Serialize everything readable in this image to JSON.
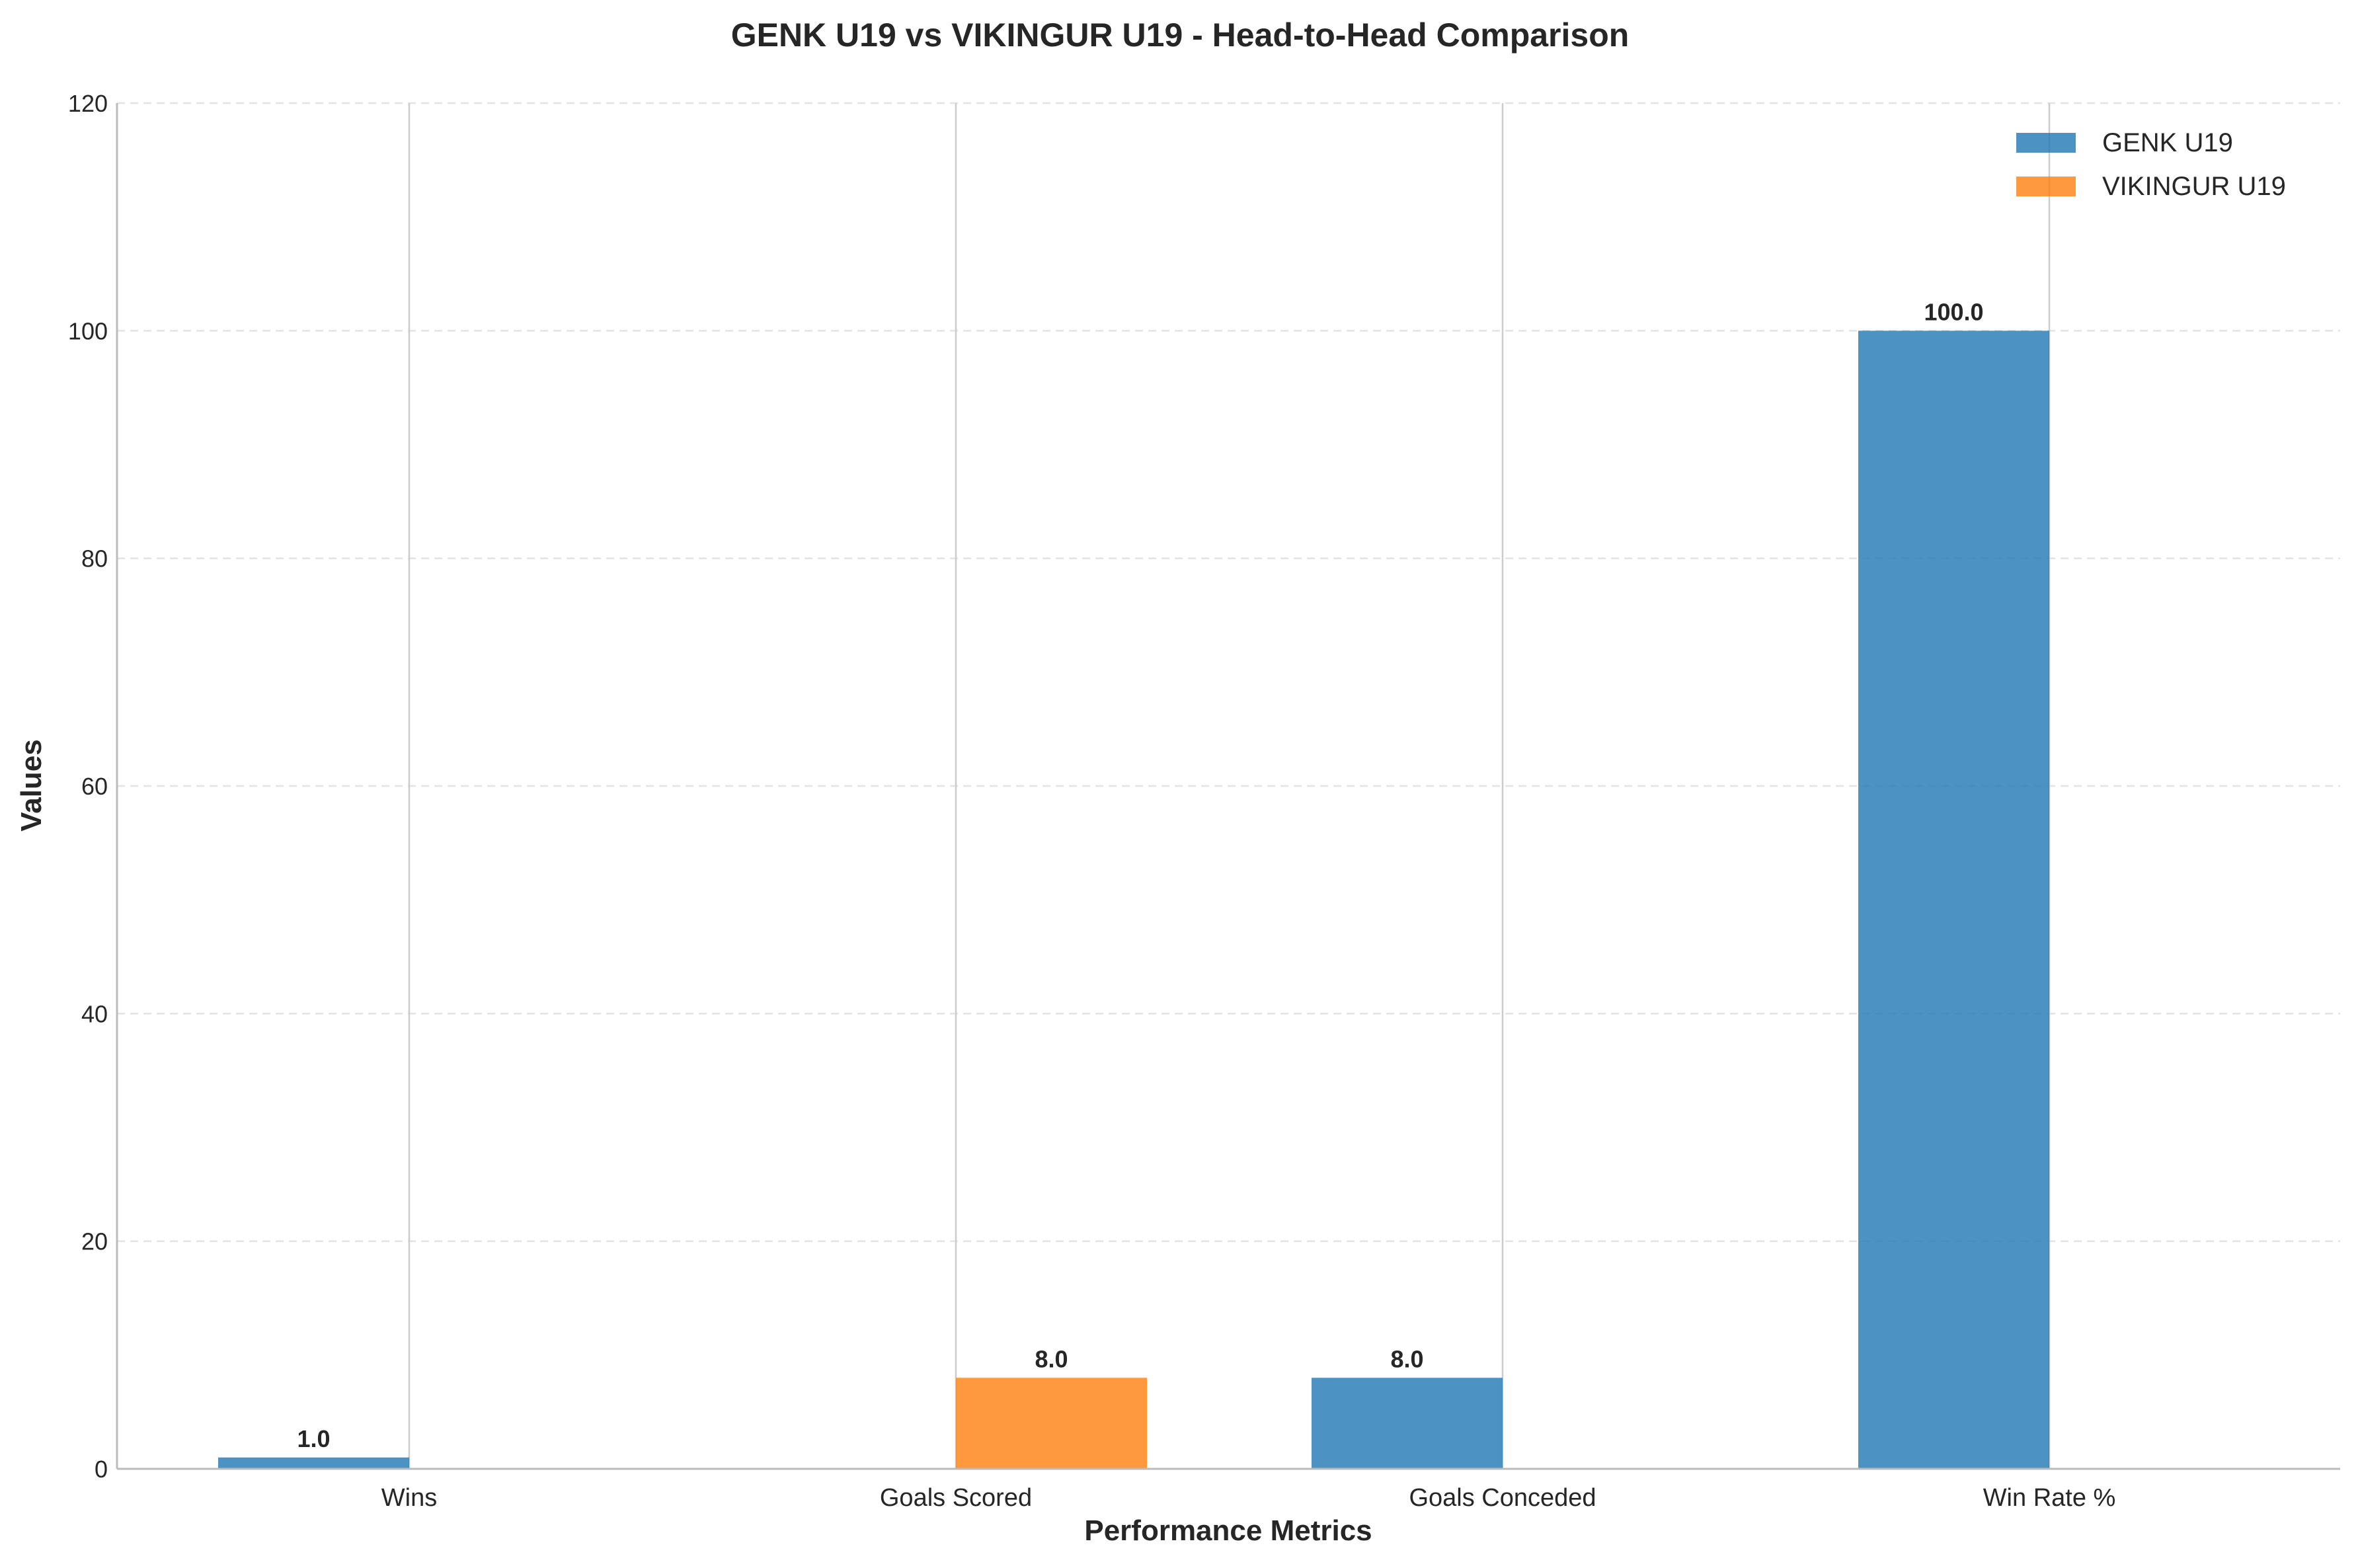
{
  "chart_data": {
    "type": "bar",
    "title": "GENK U19 vs VIKINGUR U19 - Head-to-Head Comparison",
    "xlabel": "Performance Metrics",
    "ylabel": "Values",
    "categories": [
      "Wins",
      "Goals Scored",
      "Goals Conceded",
      "Win Rate %"
    ],
    "series": [
      {
        "name": "GENK U19",
        "color": "#1f77b4",
        "values": [
          1.0,
          0,
          8.0,
          100.0
        ],
        "labels": [
          "1.0",
          "",
          "8.0",
          "100.0"
        ]
      },
      {
        "name": "VIKINGUR U19",
        "color": "#ff7f0e",
        "values": [
          0,
          8.0,
          0,
          0
        ],
        "labels": [
          "",
          "8.0",
          "",
          ""
        ]
      }
    ],
    "ylim": [
      0,
      120
    ],
    "yticks": [
      0,
      20,
      40,
      60,
      80,
      100,
      120
    ],
    "grid": "y-dashed",
    "legend_position": "top-right"
  }
}
